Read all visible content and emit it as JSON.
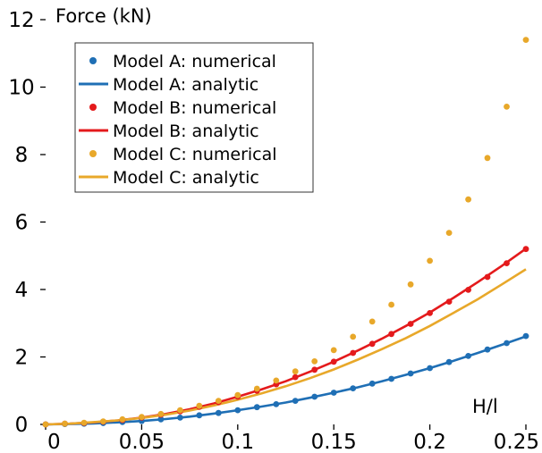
{
  "chart_data": {
    "type": "scatter",
    "ylabel": "Force (kN)",
    "xlabel": "H/l",
    "xlim": [
      0,
      0.25
    ],
    "ylim": [
      0,
      12
    ],
    "xticks": [
      {
        "v": 0,
        "label": "0"
      },
      {
        "v": 0.05,
        "label": "0.05"
      },
      {
        "v": 0.1,
        "label": "0.1"
      },
      {
        "v": 0.15,
        "label": "0.15"
      },
      {
        "v": 0.2,
        "label": "0.2"
      },
      {
        "v": 0.25,
        "label": "0.25"
      }
    ],
    "yticks": [
      {
        "v": 0,
        "label": "0"
      },
      {
        "v": 2,
        "label": "2"
      },
      {
        "v": 4,
        "label": "4"
      },
      {
        "v": 6,
        "label": "6"
      },
      {
        "v": 8,
        "label": "8"
      },
      {
        "v": 10,
        "label": "10"
      },
      {
        "v": 12,
        "label": "12"
      }
    ],
    "grid": false,
    "legend_position": "top-left",
    "legend": [
      {
        "label": "Model A: numerical",
        "kind": "marker",
        "color": "#1f6fb5"
      },
      {
        "label": "Model A: analytic",
        "kind": "line",
        "color": "#1f6fb5"
      },
      {
        "label": "Model B: numerical",
        "kind": "marker",
        "color": "#e41a1c"
      },
      {
        "label": "Model B: analytic",
        "kind": "line",
        "color": "#e41a1c"
      },
      {
        "label": "Model C: numerical",
        "kind": "marker",
        "color": "#e8a82a"
      },
      {
        "label": "Model C: analytic",
        "kind": "line",
        "color": "#e8a82a"
      }
    ],
    "series": [
      {
        "name": "Model A: numerical",
        "kind": "scatter",
        "color": "#1f6fb5",
        "x": [
          0,
          0.01,
          0.02,
          0.03,
          0.04,
          0.05,
          0.06,
          0.07,
          0.08,
          0.09,
          0.1,
          0.11,
          0.12,
          0.13,
          0.14,
          0.15,
          0.16,
          0.17,
          0.18,
          0.19,
          0.2,
          0.21,
          0.22,
          0.23,
          0.24,
          0.25
        ],
        "y": [
          0,
          0.01,
          0.02,
          0.04,
          0.07,
          0.1,
          0.15,
          0.2,
          0.27,
          0.34,
          0.42,
          0.51,
          0.6,
          0.7,
          0.82,
          0.94,
          1.07,
          1.21,
          1.35,
          1.51,
          1.67,
          1.85,
          2.03,
          2.22,
          2.41,
          2.62
        ]
      },
      {
        "name": "Model A: analytic",
        "kind": "line",
        "color": "#1f6fb5",
        "x": [
          0,
          0.0125,
          0.025,
          0.0375,
          0.05,
          0.0625,
          0.075,
          0.0875,
          0.1,
          0.1125,
          0.125,
          0.1375,
          0.15,
          0.1625,
          0.175,
          0.1875,
          0.2,
          0.2125,
          0.225,
          0.2375,
          0.25
        ],
        "y": [
          0,
          0.01,
          0.03,
          0.06,
          0.1,
          0.16,
          0.23,
          0.32,
          0.42,
          0.53,
          0.65,
          0.79,
          0.94,
          1.1,
          1.28,
          1.47,
          1.67,
          1.89,
          2.12,
          2.36,
          2.61
        ]
      },
      {
        "name": "Model B: numerical",
        "kind": "scatter",
        "color": "#e41a1c",
        "x": [
          0,
          0.01,
          0.02,
          0.03,
          0.04,
          0.05,
          0.06,
          0.07,
          0.08,
          0.09,
          0.1,
          0.11,
          0.12,
          0.13,
          0.14,
          0.15,
          0.16,
          0.17,
          0.18,
          0.19,
          0.2,
          0.21,
          0.22,
          0.23,
          0.24,
          0.25
        ],
        "y": [
          0,
          0.02,
          0.04,
          0.08,
          0.13,
          0.2,
          0.29,
          0.39,
          0.52,
          0.66,
          0.82,
          1.0,
          1.19,
          1.4,
          1.62,
          1.86,
          2.12,
          2.39,
          2.68,
          2.98,
          3.3,
          3.64,
          3.99,
          4.37,
          4.78,
          5.2
        ]
      },
      {
        "name": "Model B: analytic",
        "kind": "line",
        "color": "#e41a1c",
        "x": [
          0,
          0.0125,
          0.025,
          0.0375,
          0.05,
          0.0625,
          0.075,
          0.0875,
          0.1,
          0.1125,
          0.125,
          0.1375,
          0.15,
          0.1625,
          0.175,
          0.1875,
          0.2,
          0.2125,
          0.225,
          0.2375,
          0.25
        ],
        "y": [
          0,
          0.02,
          0.06,
          0.12,
          0.2,
          0.31,
          0.45,
          0.62,
          0.82,
          1.04,
          1.28,
          1.56,
          1.86,
          2.19,
          2.54,
          2.92,
          3.32,
          3.76,
          4.22,
          4.7,
          5.21
        ]
      },
      {
        "name": "Model C: numerical",
        "kind": "scatter",
        "color": "#e8a82a",
        "x": [
          0,
          0.01,
          0.02,
          0.03,
          0.04,
          0.05,
          0.06,
          0.07,
          0.08,
          0.09,
          0.1,
          0.11,
          0.12,
          0.13,
          0.14,
          0.15,
          0.16,
          0.17,
          0.18,
          0.19,
          0.2,
          0.21,
          0.22,
          0.23,
          0.24,
          0.25
        ],
        "y": [
          0,
          0.02,
          0.05,
          0.09,
          0.15,
          0.22,
          0.31,
          0.42,
          0.55,
          0.7,
          0.87,
          1.06,
          1.3,
          1.57,
          1.87,
          2.2,
          2.6,
          3.05,
          3.55,
          4.15,
          4.85,
          5.68,
          6.67,
          7.9,
          9.42,
          11.4
        ]
      },
      {
        "name": "Model C: analytic",
        "kind": "line",
        "color": "#e8a82a",
        "x": [
          0,
          0.0125,
          0.025,
          0.0375,
          0.05,
          0.0625,
          0.075,
          0.0875,
          0.1,
          0.1125,
          0.125,
          0.1375,
          0.15,
          0.1625,
          0.175,
          0.1875,
          0.2,
          0.2125,
          0.225,
          0.2375,
          0.25
        ],
        "y": [
          0,
          0.02,
          0.07,
          0.12,
          0.19,
          0.29,
          0.41,
          0.56,
          0.73,
          0.92,
          1.13,
          1.37,
          1.63,
          1.92,
          2.23,
          2.56,
          2.92,
          3.31,
          3.71,
          4.15,
          4.6
        ]
      }
    ]
  }
}
